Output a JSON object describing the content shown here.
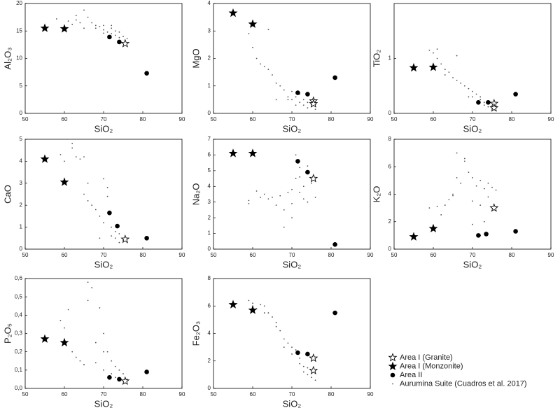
{
  "chart_data": [
    {
      "type": "scatter",
      "xlabel": "SiO₂",
      "ylabel": "Al₂O₃",
      "xlim": [
        50,
        90
      ],
      "xticks": [
        50,
        60,
        70,
        80,
        90
      ],
      "ylim": [
        0,
        20
      ],
      "yticks": [
        0,
        5,
        10,
        15,
        20
      ],
      "series": [
        {
          "name": "Area I (Granite)",
          "marker": "star-open",
          "color": "#000000",
          "x": [
            75.5
          ],
          "values": [
            12.7
          ]
        },
        {
          "name": "Area I (Monzonite)",
          "marker": "star",
          "color": "#000000",
          "x": [
            55,
            60
          ],
          "values": [
            15.5,
            15.4
          ]
        },
        {
          "name": "Area II",
          "marker": "circle",
          "color": "#000000",
          "x": [
            71.5,
            74,
            81
          ],
          "values": [
            13.9,
            13,
            7.3
          ]
        },
        {
          "name": "Aurumina Suite (Cuadros et al. 2017)",
          "marker": "dot",
          "color": "#555555",
          "x": [
            58,
            61,
            62,
            63,
            64,
            65,
            66,
            67,
            68,
            69,
            70,
            70,
            71,
            72,
            72,
            73,
            73,
            74,
            74,
            75,
            76,
            63,
            65,
            68,
            70,
            72
          ],
          "values": [
            17.2,
            16.8,
            16.2,
            17,
            16.5,
            18.8,
            17.5,
            16.5,
            16,
            15.8,
            16,
            15.2,
            14.8,
            15.5,
            14.5,
            15,
            14.2,
            14.8,
            13.8,
            14,
            13.6,
            17.8,
            15.5,
            15.5,
            14.6,
            16
          ]
        }
      ]
    },
    {
      "type": "scatter",
      "xlabel": "SiO₂",
      "ylabel": "MgO",
      "xlim": [
        50,
        90
      ],
      "xticks": [
        50,
        60,
        70,
        80,
        90
      ],
      "ylim": [
        0,
        4
      ],
      "yticks": [
        0,
        1,
        2,
        3,
        4
      ],
      "series": [
        {
          "marker": "star-open",
          "color": "#000000",
          "x": [
            75.5,
            75.5
          ],
          "values": [
            0.45,
            0.35
          ]
        },
        {
          "marker": "star",
          "color": "#000000",
          "x": [
            55,
            60
          ],
          "values": [
            3.65,
            3.25
          ]
        },
        {
          "marker": "circle",
          "color": "#000000",
          "x": [
            71.5,
            74,
            81
          ],
          "values": [
            0.75,
            0.7,
            1.3
          ]
        },
        {
          "marker": "dot",
          "color": "#555555",
          "x": [
            59,
            60,
            61,
            62,
            63,
            64,
            65,
            66,
            66,
            67,
            68,
            69,
            70,
            70,
            71,
            72,
            72,
            73,
            73,
            74,
            74,
            75,
            76,
            64,
            69,
            71
          ],
          "values": [
            2.9,
            2.4,
            2,
            1.8,
            1.7,
            3.05,
            1.4,
            1.1,
            0.5,
            1,
            0.85,
            0.6,
            0.8,
            0.5,
            0.6,
            0.4,
            0.7,
            0.3,
            0.5,
            0.2,
            0.4,
            0.25,
            0.15,
            1.6,
            0.5,
            0.3
          ]
        }
      ]
    },
    {
      "type": "scatter",
      "xlabel": "SiO₂",
      "ylabel": "TiO₂",
      "xlim": [
        50,
        90
      ],
      "xticks": [
        50,
        60,
        70,
        80,
        90
      ],
      "ylim": [
        0,
        2
      ],
      "yticks": [
        0,
        1
      ],
      "series": [
        {
          "marker": "star-open",
          "color": "#000000",
          "x": [
            75.5,
            75.5
          ],
          "values": [
            0.18,
            0.1
          ]
        },
        {
          "marker": "star",
          "color": "#000000",
          "x": [
            55,
            60
          ],
          "values": [
            0.83,
            0.84
          ]
        },
        {
          "marker": "circle",
          "color": "#000000",
          "x": [
            71.5,
            74,
            81
          ],
          "values": [
            0.2,
            0.2,
            0.35
          ]
        },
        {
          "marker": "dot",
          "color": "#555555",
          "x": [
            59,
            60,
            61,
            62,
            63,
            64,
            65,
            66,
            66,
            67,
            68,
            69,
            70,
            70,
            71,
            72,
            72,
            73,
            73,
            74,
            74,
            75,
            76,
            61,
            63,
            69
          ],
          "values": [
            1.15,
            1.1,
            1.17,
            0.9,
            0.8,
            0.75,
            0.65,
            0.6,
            1.05,
            0.55,
            0.5,
            0.45,
            0.4,
            0.3,
            0.35,
            0.25,
            0.3,
            0.2,
            0.15,
            0.12,
            0.2,
            0.08,
            0.1,
            1.0,
            0.7,
            0.3
          ]
        }
      ]
    },
    {
      "type": "scatter",
      "xlabel": "SiO₂",
      "ylabel": "CaO",
      "xlim": [
        50,
        90
      ],
      "xticks": [
        50,
        60,
        70,
        80,
        90
      ],
      "ylim": [
        0,
        5
      ],
      "yticks": [
        0,
        1,
        2,
        3,
        4,
        5
      ],
      "series": [
        {
          "marker": "star-open",
          "color": "#000000",
          "x": [
            75.5
          ],
          "values": [
            0.45
          ]
        },
        {
          "marker": "star",
          "color": "#000000",
          "x": [
            55,
            60
          ],
          "values": [
            4.1,
            3.05
          ]
        },
        {
          "marker": "circle",
          "color": "#000000",
          "x": [
            71.5,
            73.5,
            81
          ],
          "values": [
            1.65,
            1.05,
            0.5
          ]
        },
        {
          "marker": "dot",
          "color": "#555555",
          "x": [
            59,
            60,
            62,
            63,
            64,
            65,
            66,
            66,
            67,
            68,
            69,
            70,
            70,
            71,
            72,
            72,
            73,
            73,
            74,
            74,
            75,
            76,
            62,
            65,
            69,
            71
          ],
          "values": [
            4.3,
            4,
            4.8,
            4.2,
            4.1,
            4.2,
            3,
            2.2,
            2,
            1.8,
            1.5,
            3.2,
            1.2,
            2.8,
            1,
            0.6,
            0.8,
            0.5,
            0.7,
            0.3,
            0.4,
            0.3,
            4.6,
            2.5,
            0.5,
            2.4
          ]
        }
      ]
    },
    {
      "type": "scatter",
      "xlabel": "SiO₂",
      "ylabel": "Na₂O",
      "xlim": [
        50,
        90
      ],
      "xticks": [
        50,
        60,
        70,
        80,
        90
      ],
      "ylim": [
        0,
        7
      ],
      "yticks": [
        0,
        1,
        2,
        3,
        4,
        5,
        6,
        7
      ],
      "series": [
        {
          "marker": "star-open",
          "color": "#000000",
          "x": [
            75.5
          ],
          "values": [
            4.5
          ]
        },
        {
          "marker": "star",
          "color": "#000000",
          "x": [
            55,
            60
          ],
          "values": [
            6.1,
            6.1
          ]
        },
        {
          "marker": "circle",
          "color": "#000000",
          "x": [
            71.5,
            74,
            81
          ],
          "values": [
            5.6,
            4.9,
            0.3
          ]
        },
        {
          "marker": "dot",
          "color": "#555555",
          "x": [
            59,
            59,
            61,
            62,
            63,
            64,
            65,
            66,
            67,
            68,
            69,
            70,
            70,
            71,
            72,
            72,
            73,
            73,
            74,
            74,
            75,
            76,
            68,
            70,
            71,
            72
          ],
          "values": [
            3.1,
            2.9,
            3.7,
            3.3,
            3.5,
            3.2,
            3.3,
            2.8,
            3.4,
            2.5,
            3.6,
            3.8,
            2.9,
            4.5,
            5.2,
            3.6,
            4,
            3.2,
            5.3,
            3,
            4.2,
            3.3,
            1.4,
            2,
            6,
            4.6
          ]
        }
      ]
    },
    {
      "type": "scatter",
      "xlabel": "SiO₂",
      "ylabel": "K₂O",
      "xlim": [
        50,
        90
      ],
      "xticks": [
        50,
        60,
        70,
        80,
        90
      ],
      "ylim": [
        0,
        8
      ],
      "yticks": [
        0,
        2,
        4,
        6,
        8
      ],
      "series": [
        {
          "marker": "star-open",
          "color": "#000000",
          "x": [
            75.5
          ],
          "values": [
            3
          ]
        },
        {
          "marker": "star",
          "color": "#000000",
          "x": [
            55,
            60
          ],
          "values": [
            0.9,
            1.5
          ]
        },
        {
          "marker": "circle",
          "color": "#000000",
          "x": [
            71.5,
            73.5,
            81
          ],
          "values": [
            1,
            1.1,
            1.3
          ]
        },
        {
          "marker": "dot",
          "color": "#555555",
          "x": [
            59,
            61,
            62,
            63,
            64,
            65,
            66,
            66,
            67,
            68,
            69,
            70,
            70,
            71,
            72,
            72,
            73,
            73,
            74,
            74,
            75,
            76,
            65,
            68,
            70,
            72
          ],
          "values": [
            3,
            3.1,
            2.5,
            3.2,
            3.6,
            4,
            7,
            5.2,
            4.8,
            6.4,
            5.6,
            5.2,
            3.5,
            4.6,
            5,
            3.2,
            4.4,
            2,
            4.8,
            3.8,
            4.5,
            4.3,
            3.9,
            6.6,
            1.8,
            1
          ]
        }
      ]
    },
    {
      "type": "scatter",
      "xlabel": "SiO₂",
      "ylabel": "P₂O₅",
      "xlim": [
        50,
        90
      ],
      "xticks": [
        50,
        60,
        70,
        80,
        90
      ],
      "ylim": [
        0,
        0.6
      ],
      "yticks": [
        {
          "value": 0,
          "label": "0,0"
        },
        {
          "value": 0.1,
          "label": "0,1"
        },
        {
          "value": 0.2,
          "label": "0,2"
        },
        {
          "value": 0.3,
          "label": "0,3"
        },
        {
          "value": 0.4,
          "label": "0,4"
        },
        {
          "value": 0.5,
          "label": "0,5"
        },
        {
          "value": 0.6,
          "label": "0,6"
        }
      ],
      "series": [
        {
          "marker": "star-open",
          "color": "#000000",
          "x": [
            75.5
          ],
          "values": [
            0.04
          ]
        },
        {
          "marker": "star",
          "color": "#000000",
          "x": [
            55,
            60
          ],
          "values": [
            0.27,
            0.25
          ]
        },
        {
          "marker": "circle",
          "color": "#000000",
          "x": [
            71.5,
            74,
            81
          ],
          "values": [
            0.06,
            0.05,
            0.09
          ]
        },
        {
          "marker": "dot",
          "color": "#555555",
          "x": [
            59,
            60,
            61,
            62,
            63,
            64,
            65,
            66,
            66,
            67,
            68,
            69,
            70,
            70,
            71,
            72,
            72,
            73,
            73,
            74,
            74,
            75,
            76,
            65,
            68,
            70
          ],
          "values": [
            0.37,
            0.33,
            0.43,
            0.2,
            0.17,
            0.15,
            0.13,
            0.48,
            0.58,
            0.55,
            0.14,
            0.44,
            0.3,
            0.1,
            0.2,
            0.15,
            0.08,
            0.12,
            0.06,
            0.1,
            0.05,
            0.08,
            0.05,
            0.13,
            0.25,
            0.2
          ]
        }
      ]
    },
    {
      "type": "scatter",
      "xlabel": "SiO₂",
      "ylabel": "Fe₂O₃",
      "xlim": [
        50,
        90
      ],
      "xticks": [
        50,
        60,
        70,
        80,
        90
      ],
      "ylim": [
        0,
        8
      ],
      "yticks": [
        0,
        2,
        4,
        6,
        8
      ],
      "series": [
        {
          "marker": "star-open",
          "color": "#000000",
          "x": [
            75.5,
            75.5
          ],
          "values": [
            2.2,
            1.3
          ]
        },
        {
          "marker": "star",
          "color": "#000000",
          "x": [
            55,
            60
          ],
          "values": [
            6.1,
            5.7
          ]
        },
        {
          "marker": "circle",
          "color": "#000000",
          "x": [
            71.5,
            74,
            81
          ],
          "values": [
            2.6,
            2.5,
            5.5
          ]
        },
        {
          "marker": "dot",
          "color": "#555555",
          "x": [
            59,
            60,
            61,
            62,
            63,
            64,
            65,
            66,
            66,
            67,
            68,
            69,
            70,
            70,
            71,
            72,
            72,
            73,
            73,
            74,
            74,
            75,
            76,
            60,
            63,
            68
          ],
          "values": [
            6.4,
            6,
            5.8,
            6.1,
            6,
            5.5,
            5.2,
            4.8,
            4.5,
            4.2,
            3.6,
            3.3,
            3,
            2.5,
            2.8,
            2.2,
            1.8,
            1.6,
            1.2,
            1.5,
            1,
            0.8,
            0.6,
            6.2,
            5.5,
            3
          ]
        }
      ]
    }
  ]
}
